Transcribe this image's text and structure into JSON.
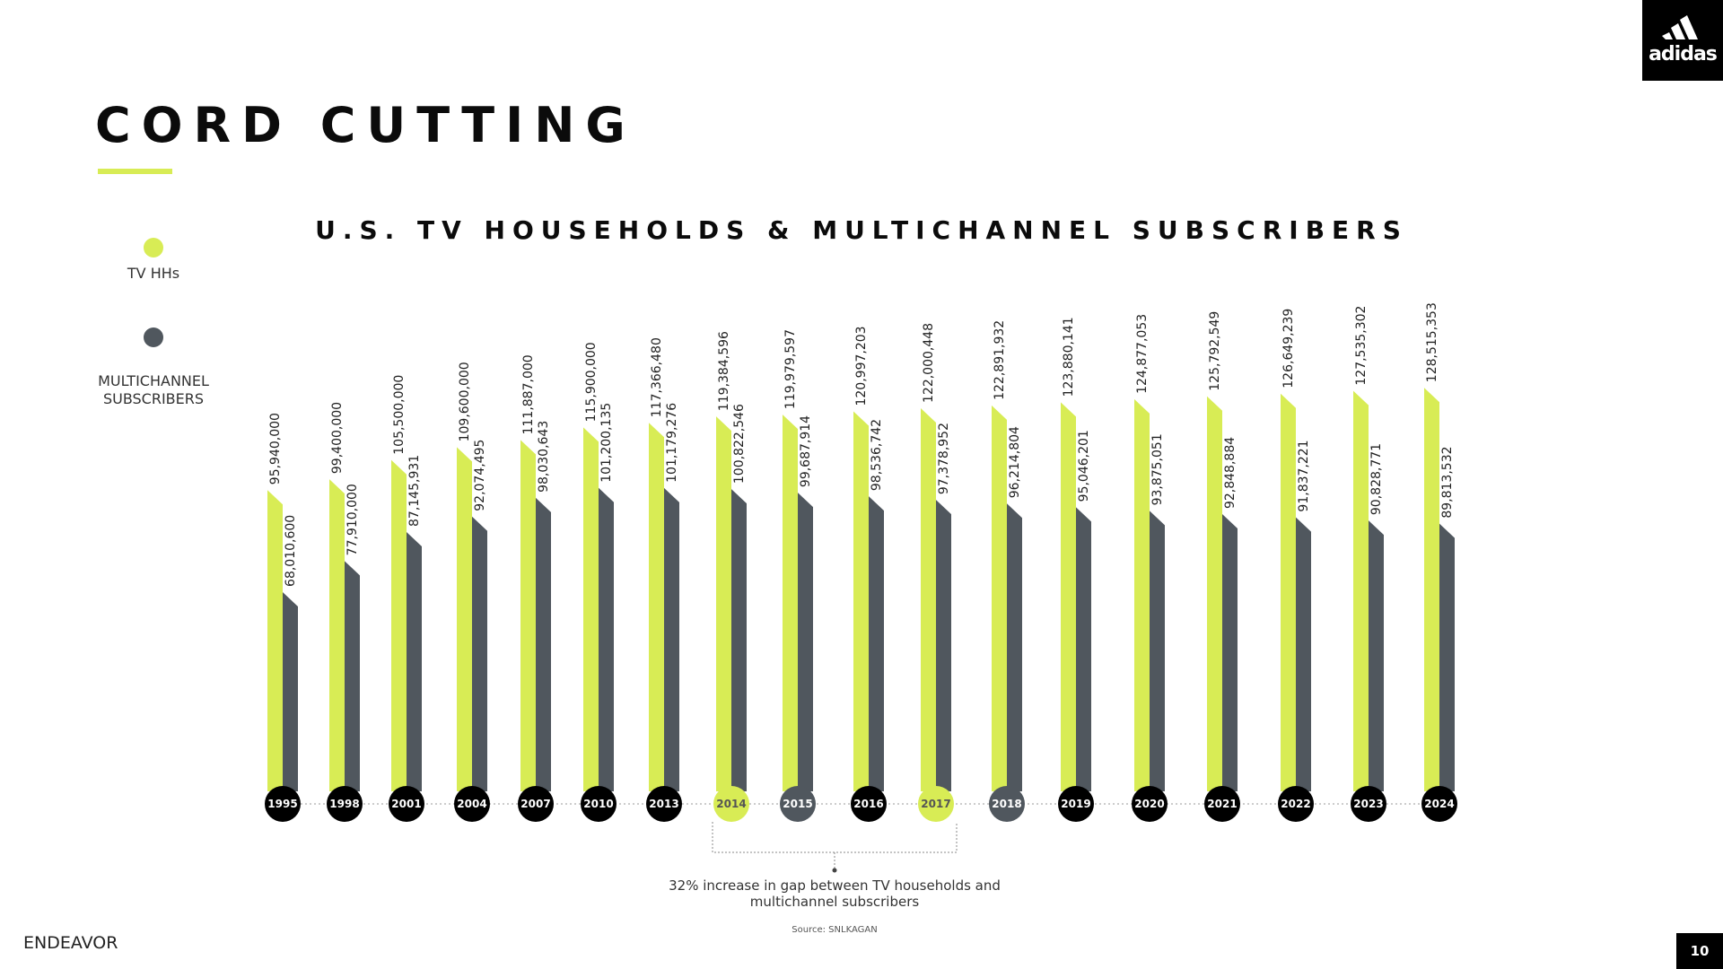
{
  "page": {
    "title": "CORD CUTTING",
    "brand_logo": "adidas",
    "footer_brand": "ENDEAVOR",
    "page_number": "10",
    "accent_color": "#d8ec55",
    "dark_color": "#50575e"
  },
  "legend": {
    "items": [
      {
        "label": "TV HHs",
        "color": "#d8ec55"
      },
      {
        "label": "MULTICHANNEL\nSUBSCRIBERS",
        "color": "#50575e"
      }
    ]
  },
  "annotation": {
    "text": "32% increase in gap between TV households and multichannel subscribers",
    "source": "Source: SNLKAGAN"
  },
  "chart_data": {
    "type": "bar",
    "title": "U.S. TV HOUSEHOLDS & MULTICHANNEL SUBSCRIBERS",
    "categories": [
      "1995",
      "1998",
      "2001",
      "2004",
      "2007",
      "2010",
      "2013",
      "2014",
      "2015",
      "2016",
      "2017",
      "2018",
      "2019",
      "2020",
      "2021",
      "2022",
      "2023",
      "2024"
    ],
    "series": [
      {
        "name": "TV HHs",
        "color": "#d8ec55",
        "values": [
          95940000,
          99400000,
          105500000,
          109600000,
          111887000,
          115900000,
          117366480,
          119384596,
          119979597,
          120997203,
          122000448,
          122891932,
          123880141,
          124877053,
          125792549,
          126649239,
          127535302,
          128515353
        ]
      },
      {
        "name": "MULTICHANNEL SUBSCRIBERS",
        "color": "#50575e",
        "values": [
          68010600,
          77910000,
          87145931,
          92074495,
          98030643,
          101200135,
          101179276,
          100822546,
          99687914,
          98536742,
          97378952,
          96214804,
          95046201,
          93875051,
          92848884,
          91837221,
          90828771,
          89813532
        ]
      }
    ],
    "highlight_categories": {
      "2014": "accent",
      "2015": "dark",
      "2017": "accent",
      "2018": "dark"
    },
    "legend": "left"
  }
}
